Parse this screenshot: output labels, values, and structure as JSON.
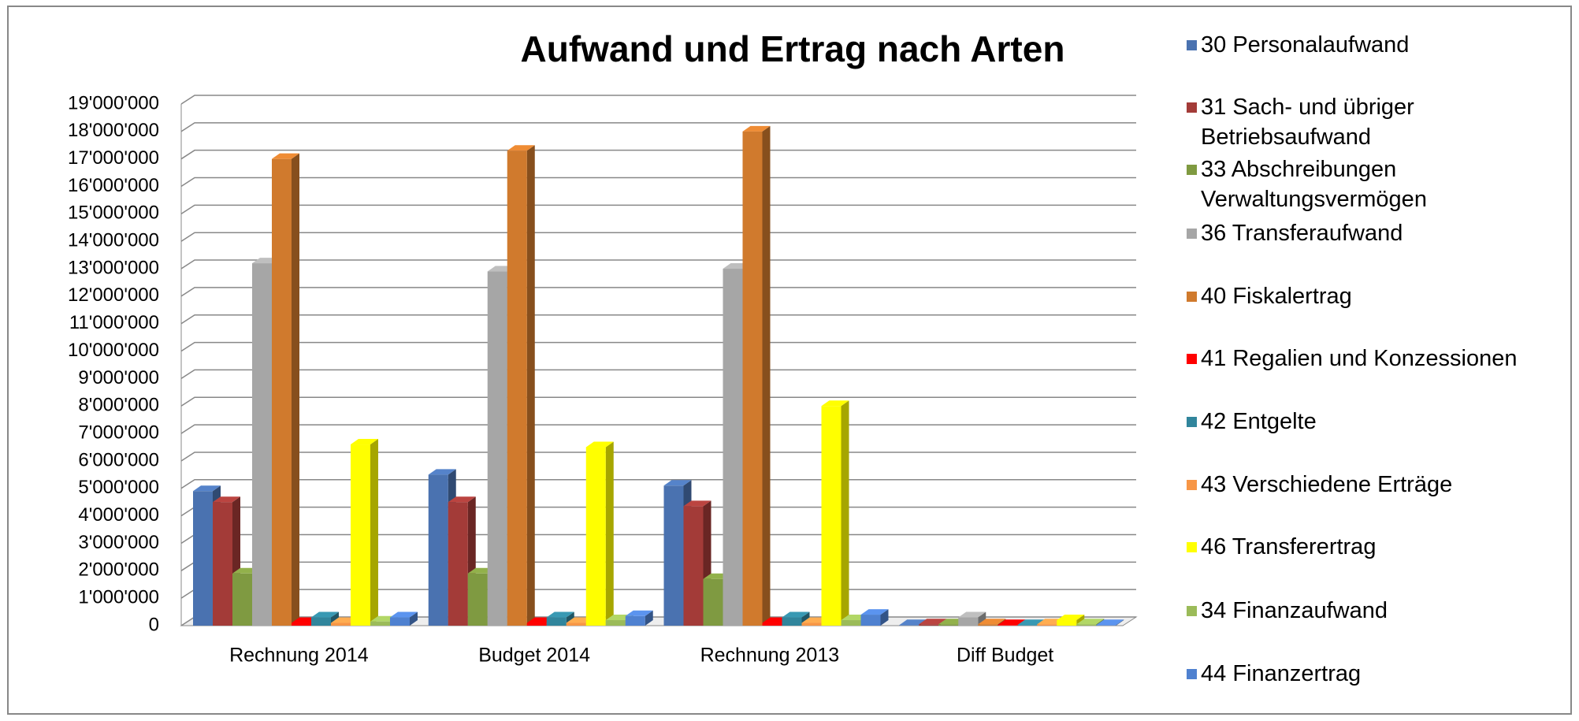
{
  "chart_data": {
    "type": "bar3d",
    "title": "Aufwand und Ertrag nach Arten",
    "categories": [
      "Rechnung 2014",
      "Budget 2014",
      "Rechnung 2013",
      "Diff Budget"
    ],
    "series": [
      {
        "name": "30 Personalaufwand",
        "color": "#4a72b0",
        "values": [
          4900000,
          5500000,
          5100000,
          20000
        ]
      },
      {
        "name": "31 Sach- und übriger Betriebsaufwand",
        "color": "#a33b38",
        "values": [
          4500000,
          4500000,
          4350000,
          50000
        ]
      },
      {
        "name": "33 Abschreibungen Verwaltungsvermögen",
        "color": "#7f9a41",
        "values": [
          1900000,
          1900000,
          1700000,
          50000
        ]
      },
      {
        "name": "36 Transferaufwand",
        "color": "#a6a6a6",
        "values": [
          13200000,
          12900000,
          13000000,
          300000
        ]
      },
      {
        "name": "40 Fiskalertrag",
        "color": "#d07a2d",
        "values": [
          17000000,
          17300000,
          18000000,
          50000
        ]
      },
      {
        "name": "41 Regalien und Konzessionen",
        "color": "#ff0000",
        "values": [
          100000,
          100000,
          100000,
          20000
        ]
      },
      {
        "name": "42 Entgelte",
        "color": "#31859c",
        "values": [
          300000,
          300000,
          300000,
          20000
        ]
      },
      {
        "name": "43 Verschiedene Erträge",
        "color": "#f79646",
        "values": [
          100000,
          100000,
          100000,
          50000
        ]
      },
      {
        "name": "46 Transferertrag",
        "color": "#ffff00",
        "values": [
          6600000,
          6500000,
          8000000,
          200000
        ]
      },
      {
        "name": "34 Finanzaufwand",
        "color": "#9bbb59",
        "values": [
          150000,
          200000,
          200000,
          50000
        ]
      },
      {
        "name": "44 Finanzertrag",
        "color": "#4f81d0",
        "values": [
          300000,
          350000,
          400000,
          20000
        ]
      }
    ],
    "ylim": [
      0,
      19000000
    ],
    "yticks": [
      0,
      {
        "value": 1000000,
        "label": "1'000'000"
      },
      {
        "value": 2000000,
        "label": "2'000'000"
      },
      {
        "value": 3000000,
        "label": "3'000'000"
      },
      {
        "value": 4000000,
        "label": "4'000'000"
      },
      {
        "value": 5000000,
        "label": "5'000'000"
      },
      {
        "value": 6000000,
        "label": "6'000'000"
      },
      {
        "value": 7000000,
        "label": "7'000'000"
      },
      {
        "value": 8000000,
        "label": "8'000'000"
      },
      {
        "value": 9000000,
        "label": "9'000'000"
      },
      {
        "value": 10000000,
        "label": "10'000'000"
      },
      {
        "value": 11000000,
        "label": "11'000'000"
      },
      {
        "value": 12000000,
        "label": "12'000'000"
      },
      {
        "value": 13000000,
        "label": "13'000'000"
      },
      {
        "value": 14000000,
        "label": "14'000'000"
      },
      {
        "value": 15000000,
        "label": "15'000'000"
      },
      {
        "value": 16000000,
        "label": "16'000'000"
      },
      {
        "value": 17000000,
        "label": "17'000'000"
      },
      {
        "value": 18000000,
        "label": "18'000'000"
      },
      {
        "value": 19000000,
        "label": "19'000'000"
      }
    ],
    "grid": true,
    "legend": "right"
  }
}
